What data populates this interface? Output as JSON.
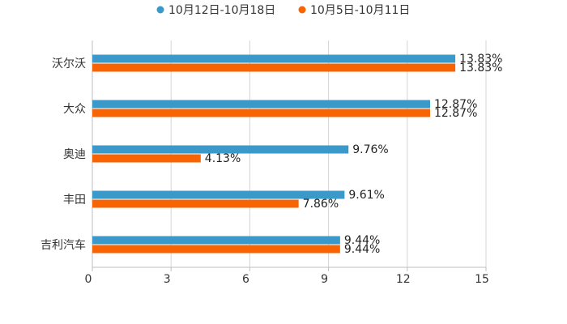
{
  "chart_data": {
    "type": "bar",
    "orientation": "horizontal",
    "title": "",
    "xlabel": "",
    "ylabel": "",
    "categories": [
      "沃尔沃",
      "大众",
      "奥迪",
      "丰田",
      "吉利汽车"
    ],
    "series": [
      {
        "name": "10月12日-10月18日",
        "color": "#3a99c9",
        "values": [
          13.83,
          12.87,
          9.76,
          9.61,
          9.44
        ],
        "labels": [
          "13.83%",
          "12.87%",
          "9.76%",
          "9.61%",
          "9.44%"
        ]
      },
      {
        "name": "10月5日-10月11日",
        "color": "#f96403",
        "values": [
          13.83,
          12.87,
          4.13,
          7.86,
          9.44
        ],
        "labels": [
          "13.83%",
          "12.87%",
          "4.13%",
          "7.86%",
          "9.44%"
        ]
      }
    ],
    "xlim": [
      0,
      15
    ],
    "xticks": [
      0,
      3,
      6,
      9,
      12,
      15
    ],
    "xtick_labels": [
      "0",
      "3",
      "6",
      "9",
      "12",
      "15"
    ],
    "grid": true,
    "legend": "top-center"
  }
}
